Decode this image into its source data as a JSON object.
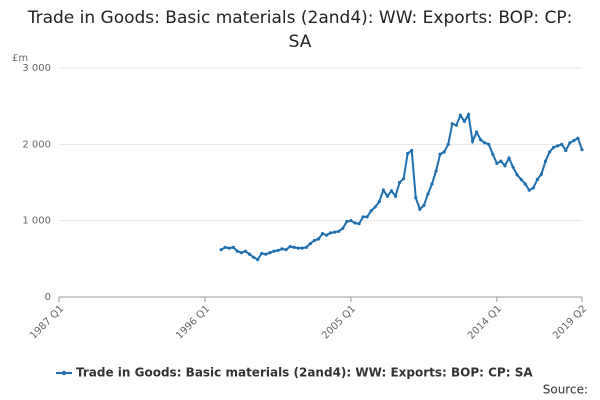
{
  "chart_data": {
    "type": "line",
    "title": "Trade in Goods: Basic materials (2and4): WW: Exports: BOP: CP: SA",
    "y_unit": "£m",
    "source": "Source:",
    "categories": [
      "1987 Q1",
      null,
      null,
      null,
      null,
      null,
      null,
      null,
      null,
      null,
      null,
      null,
      null,
      null,
      null,
      null,
      null,
      null,
      null,
      null,
      null,
      null,
      null,
      null,
      null,
      null,
      null,
      null,
      null,
      null,
      null,
      null,
      null,
      null,
      null,
      null,
      "1996 Q1",
      null,
      null,
      null,
      null,
      null,
      null,
      null,
      null,
      null,
      null,
      null,
      null,
      null,
      null,
      null,
      null,
      null,
      null,
      null,
      null,
      null,
      null,
      null,
      null,
      null,
      null,
      null,
      null,
      null,
      null,
      null,
      null,
      null,
      null,
      null,
      "2005 Q1",
      null,
      null,
      null,
      null,
      null,
      null,
      null,
      null,
      null,
      null,
      null,
      null,
      null,
      null,
      null,
      null,
      null,
      null,
      null,
      null,
      null,
      null,
      null,
      null,
      null,
      null,
      null,
      null,
      null,
      null,
      null,
      null,
      null,
      null,
      null,
      "2014 Q1",
      null,
      null,
      null,
      null,
      null,
      null,
      null,
      null,
      null,
      null,
      null,
      null,
      null,
      null,
      null,
      null,
      null,
      null,
      null,
      null,
      "2019 Q2"
    ],
    "series": [
      {
        "name": "Trade in Goods: Basic materials (2and4): WW: Exports: BOP: CP: SA",
        "color": "#1f6fb0",
        "values": [
          null,
          null,
          null,
          null,
          null,
          null,
          null,
          null,
          null,
          null,
          null,
          null,
          null,
          null,
          null,
          null,
          null,
          null,
          null,
          null,
          null,
          null,
          null,
          null,
          null,
          null,
          null,
          null,
          null,
          null,
          null,
          null,
          null,
          null,
          null,
          null,
          null,
          null,
          null,
          null,
          620,
          650,
          640,
          650,
          600,
          580,
          600,
          560,
          520,
          490,
          570,
          560,
          580,
          600,
          610,
          630,
          620,
          660,
          650,
          640,
          640,
          650,
          700,
          740,
          760,
          830,
          810,
          840,
          850,
          860,
          900,
          990,
          1000,
          970,
          960,
          1050,
          1050,
          1130,
          1180,
          1250,
          1400,
          1320,
          1390,
          1320,
          1500,
          1550,
          1880,
          1920,
          1300,
          1150,
          1200,
          1350,
          1480,
          1650,
          1870,
          1900,
          2000,
          2270,
          2250,
          2380,
          2300,
          2390,
          2040,
          2160,
          2060,
          2020,
          2000,
          1870,
          1750,
          1780,
          1720,
          1820,
          1700,
          1600,
          1540,
          1480,
          1400,
          1430,
          1540,
          1610,
          1780,
          1900,
          1960,
          1980,
          2000,
          1920,
          2020,
          2050,
          2080,
          1930
        ]
      }
    ],
    "ylim": [
      0,
      3000
    ],
    "yticks": [
      0,
      {
        "value": 1000,
        "label": "1 000"
      },
      {
        "value": 2000,
        "label": "2 000"
      },
      {
        "value": 3000,
        "label": "3 000"
      }
    ],
    "grid": true
  }
}
